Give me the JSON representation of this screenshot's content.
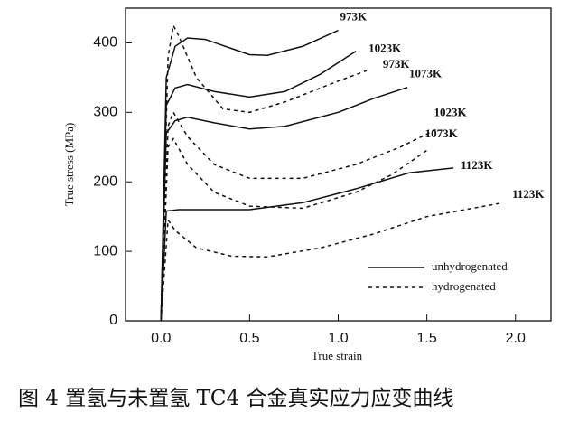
{
  "chart_data": {
    "type": "line",
    "xlabel": "True strain",
    "ylabel": "True stress (MPa)",
    "caption": "图 4  置氢与未置氢 TC4 合金真实应力应变曲线",
    "xlim": [
      -0.2,
      2.2
    ],
    "ylim": [
      0,
      450
    ],
    "xticks": [
      {
        "value": 0,
        "label": "0.0"
      },
      0.5,
      {
        "value": 1,
        "label": "1.0"
      },
      1.5,
      {
        "value": 2,
        "label": "2.0"
      }
    ],
    "yticks": [
      0,
      100,
      200,
      300,
      400
    ],
    "legend": [
      {
        "label": "unhydrogenated",
        "dashed": false
      },
      {
        "label": "hydrogenated",
        "dashed": true
      }
    ],
    "series": [
      {
        "name": "973K",
        "dashed": false,
        "color": "#111",
        "x": [
          0,
          0.03,
          0.08,
          0.15,
          0.25,
          0.5,
          0.6,
          0.8,
          1.0
        ],
        "values": [
          0,
          350,
          395,
          407,
          405,
          383,
          382,
          395,
          418
        ]
      },
      {
        "name": "1023K",
        "dashed": false,
        "color": "#111",
        "x": [
          0,
          0.03,
          0.08,
          0.15,
          0.3,
          0.5,
          0.7,
          0.9,
          1.1
        ],
        "values": [
          0,
          310,
          335,
          340,
          330,
          322,
          330,
          355,
          388
        ]
      },
      {
        "name": "973K",
        "dashed": true,
        "color": "#111",
        "x": [
          0,
          0.04,
          0.07,
          0.1,
          0.2,
          0.35,
          0.5,
          0.7,
          1.0,
          1.16
        ],
        "values": [
          0,
          380,
          425,
          410,
          350,
          305,
          300,
          315,
          345,
          360
        ]
      },
      {
        "name": "1073K",
        "dashed": false,
        "color": "#111",
        "x": [
          0,
          0.03,
          0.08,
          0.15,
          0.3,
          0.5,
          0.7,
          1.0,
          1.2,
          1.39
        ],
        "values": [
          0,
          270,
          288,
          293,
          285,
          276,
          280,
          300,
          320,
          336
        ]
      },
      {
        "name": "1023K",
        "dashed": true,
        "color": "#111",
        "x": [
          0,
          0.04,
          0.07,
          0.15,
          0.3,
          0.5,
          0.8,
          1.1,
          1.35,
          1.55
        ],
        "values": [
          0,
          280,
          300,
          265,
          225,
          205,
          205,
          225,
          250,
          275
        ]
      },
      {
        "name": "1073K",
        "dashed": true,
        "color": "#111",
        "x": [
          0,
          0.04,
          0.07,
          0.15,
          0.3,
          0.5,
          0.8,
          1.1,
          1.3,
          1.51
        ],
        "values": [
          0,
          250,
          262,
          225,
          185,
          165,
          162,
          185,
          210,
          247
        ]
      },
      {
        "name": "1123K",
        "dashed": false,
        "color": "#111",
        "x": [
          0,
          0.03,
          0.1,
          0.5,
          0.8,
          1.1,
          1.4,
          1.65
        ],
        "values": [
          0,
          158,
          160,
          160,
          170,
          190,
          213,
          220
        ]
      },
      {
        "name": "1123K",
        "dashed": true,
        "color": "#111",
        "x": [
          0,
          0.04,
          0.08,
          0.2,
          0.4,
          0.6,
          0.9,
          1.2,
          1.5,
          1.91
        ],
        "values": [
          0,
          145,
          130,
          105,
          93,
          92,
          105,
          125,
          150,
          169
        ]
      }
    ]
  }
}
